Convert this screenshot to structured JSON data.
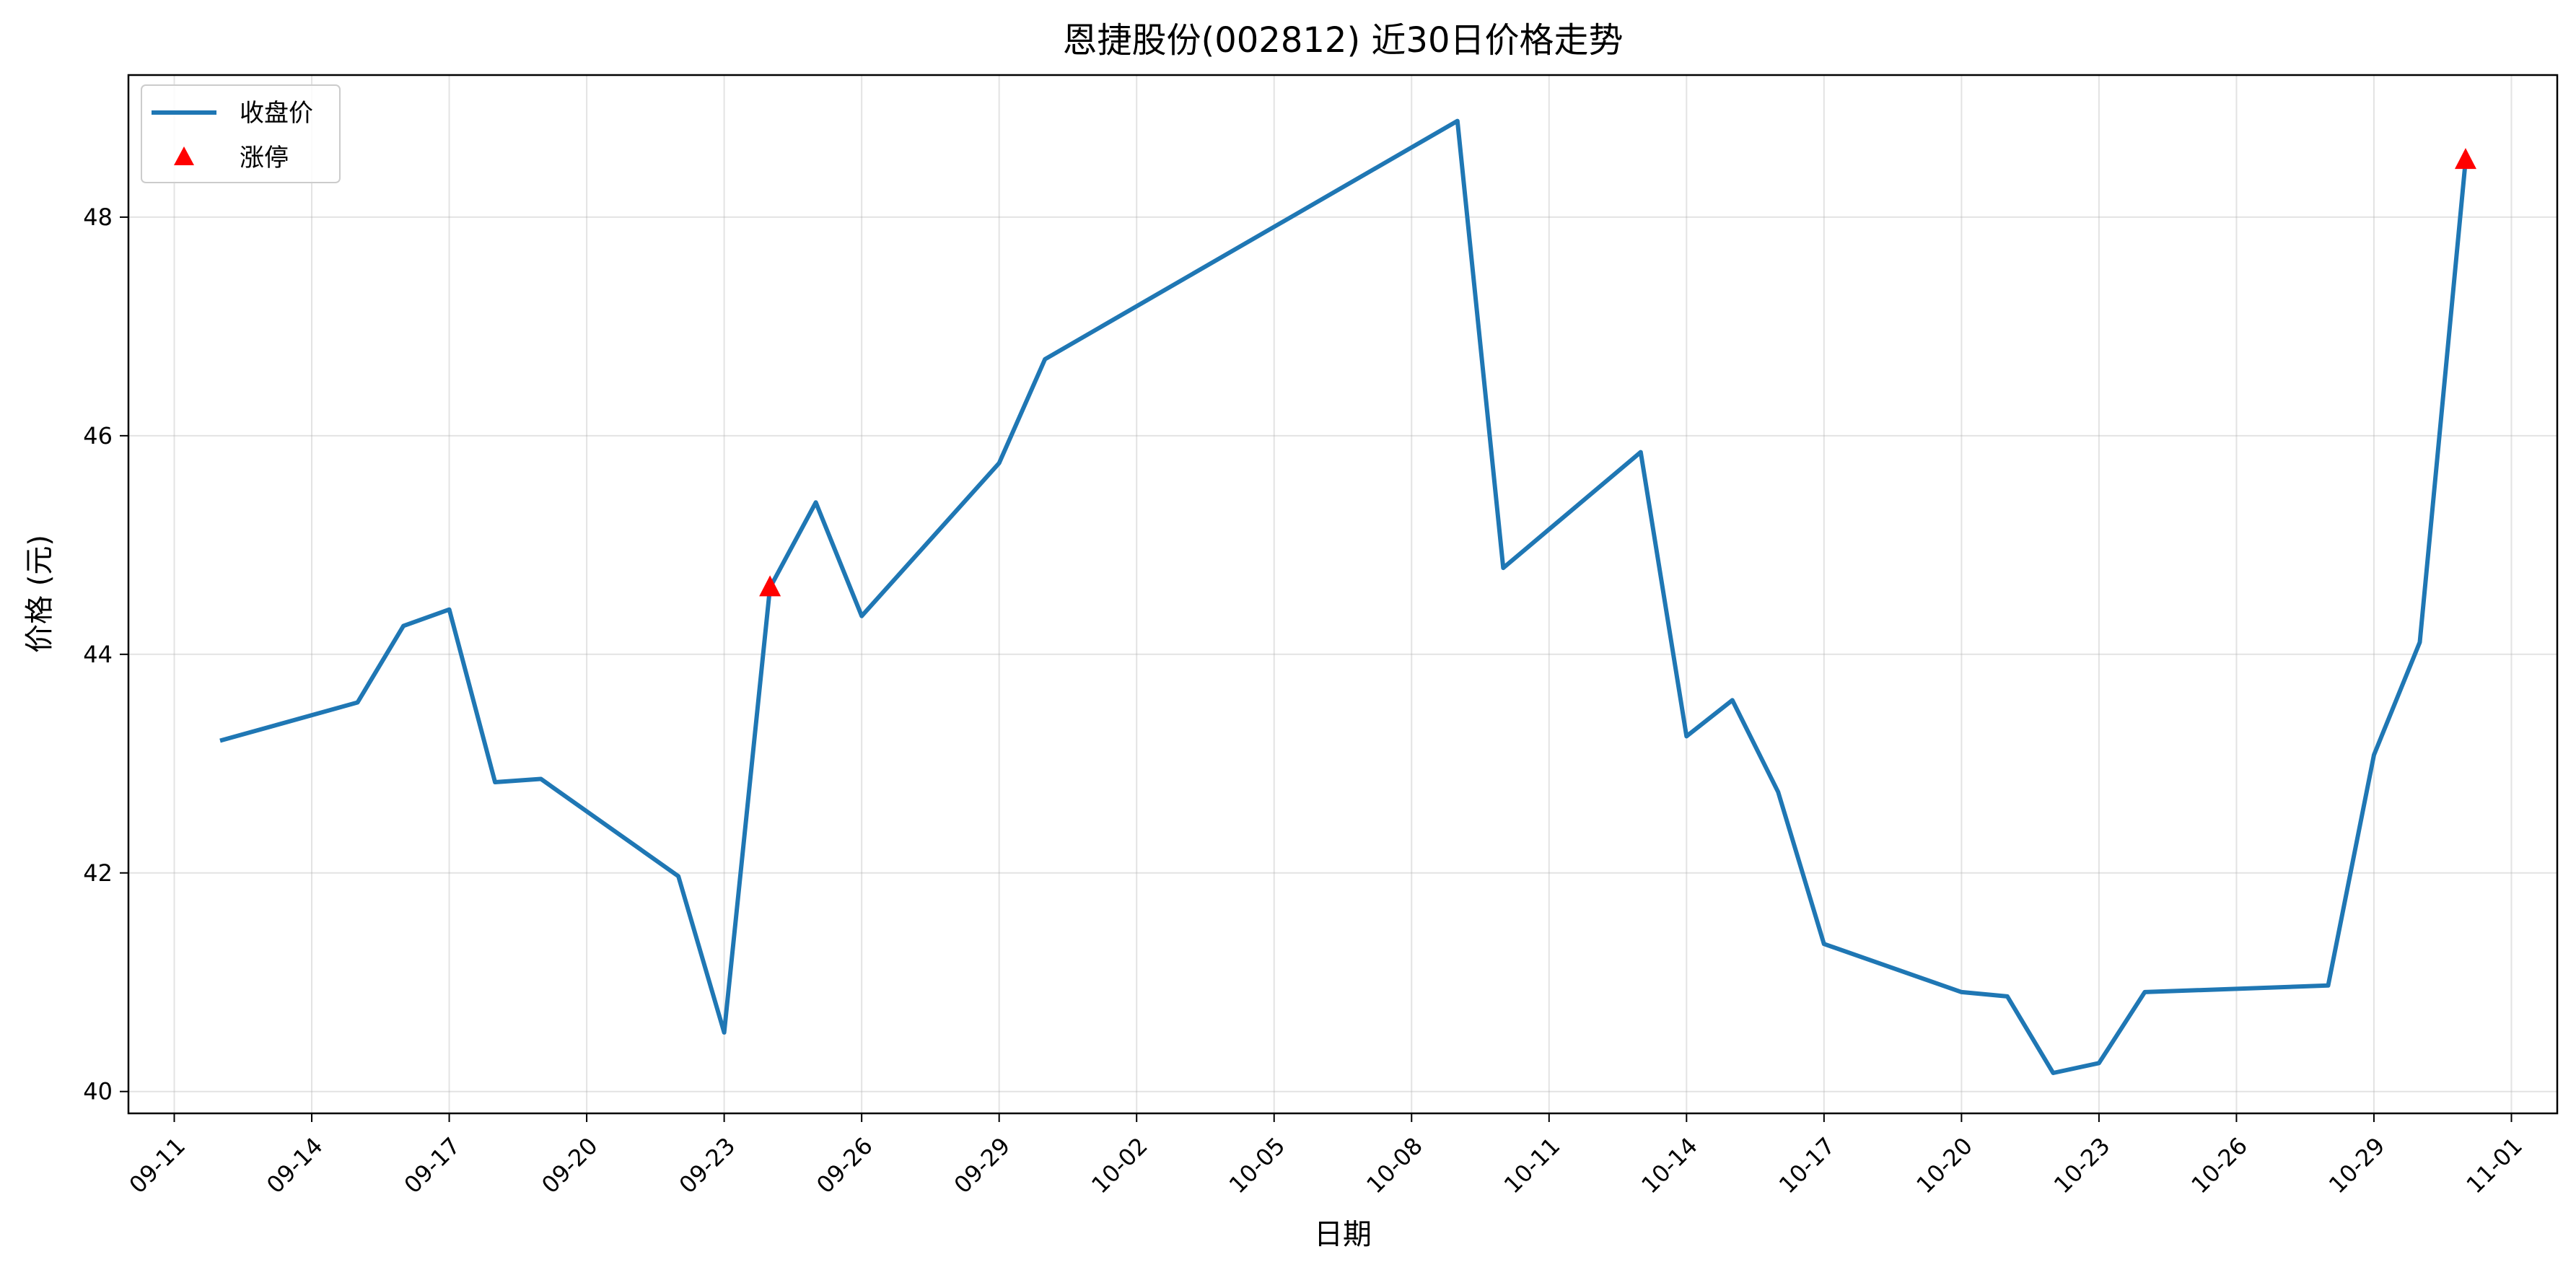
{
  "chart_data": {
    "type": "line",
    "title": "恩捷股份(002812) 近30日价格走势",
    "xlabel": "日期",
    "ylabel": "价格 (元)",
    "x_axis_type": "date",
    "xlim": [
      "2024-09-10",
      "2024-11-02"
    ],
    "ylim": [
      39.8,
      49.3
    ],
    "x_ticks": [
      "09-11",
      "09-14",
      "09-17",
      "09-20",
      "09-23",
      "09-26",
      "09-29",
      "10-02",
      "10-05",
      "10-08",
      "10-11",
      "10-14",
      "10-17",
      "10-20",
      "10-23",
      "10-26",
      "10-29",
      "11-01"
    ],
    "x_tick_dates": [
      "2024-09-11",
      "2024-09-14",
      "2024-09-17",
      "2024-09-20",
      "2024-09-23",
      "2024-09-26",
      "2024-09-29",
      "2024-10-02",
      "2024-10-05",
      "2024-10-08",
      "2024-10-11",
      "2024-10-14",
      "2024-10-17",
      "2024-10-20",
      "2024-10-23",
      "2024-10-26",
      "2024-10-29",
      "2024-11-01"
    ],
    "y_ticks": [
      40,
      42,
      44,
      46,
      48
    ],
    "grid": true,
    "legend_position": "top-left",
    "series": [
      {
        "name": "收盘价",
        "kind": "line",
        "color": "#1f77b4",
        "points": [
          {
            "x": "2024-09-12",
            "y": 43.21
          },
          {
            "x": "2024-09-15",
            "y": 43.56
          },
          {
            "x": "2024-09-16",
            "y": 44.26
          },
          {
            "x": "2024-09-17",
            "y": 44.41
          },
          {
            "x": "2024-09-18",
            "y": 42.83
          },
          {
            "x": "2024-09-19",
            "y": 42.86
          },
          {
            "x": "2024-09-22",
            "y": 41.97
          },
          {
            "x": "2024-09-23",
            "y": 40.54
          },
          {
            "x": "2024-09-24",
            "y": 44.61
          },
          {
            "x": "2024-09-25",
            "y": 45.39
          },
          {
            "x": "2024-09-26",
            "y": 44.35
          },
          {
            "x": "2024-09-29",
            "y": 45.75
          },
          {
            "x": "2024-09-30",
            "y": 46.7
          },
          {
            "x": "2024-10-09",
            "y": 48.88
          },
          {
            "x": "2024-10-10",
            "y": 44.79
          },
          {
            "x": "2024-10-13",
            "y": 45.85
          },
          {
            "x": "2024-10-14",
            "y": 43.25
          },
          {
            "x": "2024-10-15",
            "y": 43.58
          },
          {
            "x": "2024-10-16",
            "y": 42.74
          },
          {
            "x": "2024-10-17",
            "y": 41.35
          },
          {
            "x": "2024-10-20",
            "y": 40.91
          },
          {
            "x": "2024-10-21",
            "y": 40.87
          },
          {
            "x": "2024-10-22",
            "y": 40.17
          },
          {
            "x": "2024-10-23",
            "y": 40.26
          },
          {
            "x": "2024-10-24",
            "y": 40.91
          },
          {
            "x": "2024-10-28",
            "y": 40.97
          },
          {
            "x": "2024-10-29",
            "y": 43.08
          },
          {
            "x": "2024-10-30",
            "y": 44.11
          },
          {
            "x": "2024-10-31",
            "y": 48.52
          }
        ]
      },
      {
        "name": "涨停",
        "kind": "scatter",
        "marker": "triangle-up",
        "color": "#ff0000",
        "points": [
          {
            "x": "2024-09-24",
            "y": 44.61
          },
          {
            "x": "2024-10-31",
            "y": 48.52
          }
        ]
      }
    ]
  }
}
